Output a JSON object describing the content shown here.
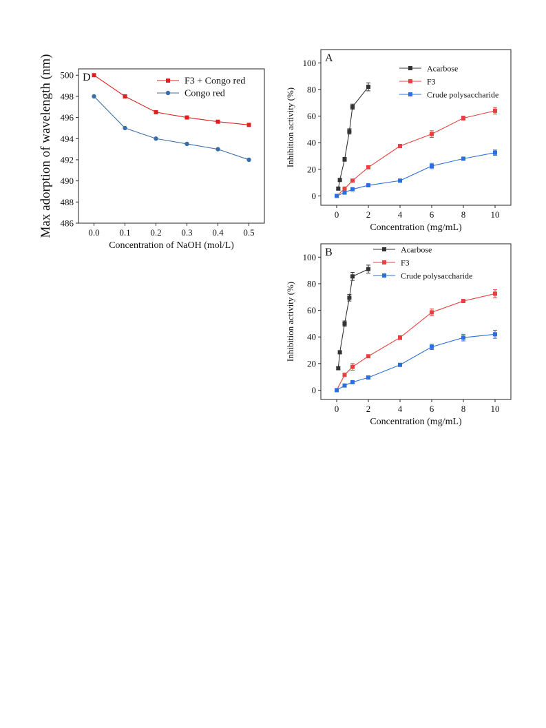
{
  "chart_data": [
    {
      "type": "line",
      "panel_label": "D",
      "xlabel": "Concentration of NaOH (mol/L)",
      "ylabel": "Max adorption of wavelength (nm)",
      "xlim": [
        -0.05,
        0.55
      ],
      "ylim": [
        486,
        500.6
      ],
      "xticks": [
        0.0,
        0.1,
        0.2,
        0.3,
        0.4,
        0.5
      ],
      "xtick_labels": [
        "0.0",
        "0.1",
        "0.2",
        "0.3",
        "0.4",
        "0.5"
      ],
      "yticks": [
        486,
        488,
        490,
        492,
        494,
        496,
        498,
        500
      ],
      "ytick_labels": [
        "486",
        "488",
        "490",
        "492",
        "494",
        "496",
        "498",
        "500"
      ],
      "grid": false,
      "legend_position": "top-right",
      "series": [
        {
          "name": "F3 + Congo red",
          "color": "#e02020",
          "marker": "square",
          "x": [
            0.0,
            0.1,
            0.2,
            0.3,
            0.4,
            0.5
          ],
          "y": [
            500.0,
            498.0,
            496.5,
            496.0,
            495.6,
            495.3
          ]
        },
        {
          "name": "Congo red",
          "color": "#3a6ea5",
          "marker": "circle",
          "x": [
            0.0,
            0.1,
            0.2,
            0.3,
            0.4,
            0.5
          ],
          "y": [
            498.0,
            495.0,
            494.0,
            493.5,
            493.0,
            492.0
          ]
        }
      ]
    },
    {
      "type": "line",
      "panel_label": "A",
      "xlabel": "Concentration (mg/mL)",
      "ylabel": "Inhibition activity (%)",
      "xlim": [
        -1,
        11
      ],
      "ylim": [
        -7,
        110
      ],
      "xticks": [
        0,
        2,
        4,
        6,
        8,
        10
      ],
      "xtick_labels": [
        "0",
        "2",
        "4",
        "6",
        "8",
        "10"
      ],
      "yticks": [
        0,
        20,
        40,
        60,
        80,
        100
      ],
      "ytick_labels": [
        "0",
        "20",
        "40",
        "60",
        "80",
        "100"
      ],
      "grid": false,
      "legend_position": "top-right",
      "series": [
        {
          "name": "Acarbose",
          "color": "#333333",
          "marker": "square",
          "x": [
            0.1,
            0.2,
            0.5,
            0.8,
            1.0,
            2.0
          ],
          "y": [
            5.5,
            12.0,
            27.5,
            48.5,
            67.0,
            82.0
          ],
          "err": [
            1.0,
            1.0,
            1.5,
            2.0,
            2.0,
            3.0
          ]
        },
        {
          "name": "F3",
          "color": "#e84040",
          "marker": "square",
          "x": [
            0,
            0.5,
            1.0,
            2.0,
            4.0,
            6.0,
            8.0,
            10.0
          ],
          "y": [
            0,
            5.5,
            11.5,
            21.5,
            37.5,
            46.5,
            58.5,
            64.0
          ],
          "err": [
            0,
            0.8,
            0.8,
            0.8,
            0.8,
            2.5,
            1.5,
            2.5
          ]
        },
        {
          "name": "Crude polysaccharide",
          "color": "#2a6fdb",
          "marker": "square",
          "x": [
            0,
            0.5,
            1.0,
            2.0,
            4.0,
            6.0,
            8.0,
            10.0
          ],
          "y": [
            0,
            2.5,
            5.0,
            8.0,
            11.5,
            22.5,
            28.0,
            32.5
          ],
          "err": [
            0,
            0.5,
            0.8,
            0.8,
            0.8,
            2.0,
            1.0,
            2.0
          ]
        }
      ]
    },
    {
      "type": "line",
      "panel_label": "B",
      "xlabel": "Concentration (mg/mL)",
      "ylabel": "Inhibition activity (%)",
      "xlim": [
        -1,
        11
      ],
      "ylim": [
        -7,
        110
      ],
      "xticks": [
        0,
        2,
        4,
        6,
        8,
        10
      ],
      "xtick_labels": [
        "0",
        "2",
        "4",
        "6",
        "8",
        "10"
      ],
      "yticks": [
        0,
        20,
        40,
        60,
        80,
        100
      ],
      "ytick_labels": [
        "0",
        "20",
        "40",
        "60",
        "80",
        "100"
      ],
      "grid": false,
      "legend_position": "top-right",
      "series": [
        {
          "name": "Acarbose",
          "color": "#333333",
          "marker": "square",
          "x": [
            0.1,
            0.2,
            0.5,
            0.8,
            1.0,
            2.0
          ],
          "y": [
            16.5,
            28.5,
            50.0,
            69.5,
            85.5,
            91.0
          ],
          "err": [
            1.0,
            1.0,
            2.0,
            2.5,
            3.0,
            3.0
          ]
        },
        {
          "name": "F3",
          "color": "#e84040",
          "marker": "square",
          "x": [
            0,
            0.5,
            1.0,
            2.0,
            4.0,
            6.0,
            8.0,
            10.0
          ],
          "y": [
            0,
            11.5,
            17.5,
            25.5,
            39.5,
            58.5,
            67.0,
            72.5
          ],
          "err": [
            0,
            1.0,
            2.5,
            0.8,
            1.5,
            2.5,
            1.0,
            3.0
          ]
        },
        {
          "name": "Crude polysaccharide",
          "color": "#2a6fdb",
          "marker": "square",
          "x": [
            0,
            0.5,
            1.0,
            2.0,
            4.0,
            6.0,
            8.0,
            10.0
          ],
          "y": [
            0,
            3.5,
            6.0,
            9.5,
            19.0,
            32.5,
            39.5,
            42.0
          ],
          "err": [
            0,
            0.5,
            0.5,
            0.8,
            0.8,
            2.0,
            2.5,
            3.0
          ]
        }
      ]
    }
  ]
}
